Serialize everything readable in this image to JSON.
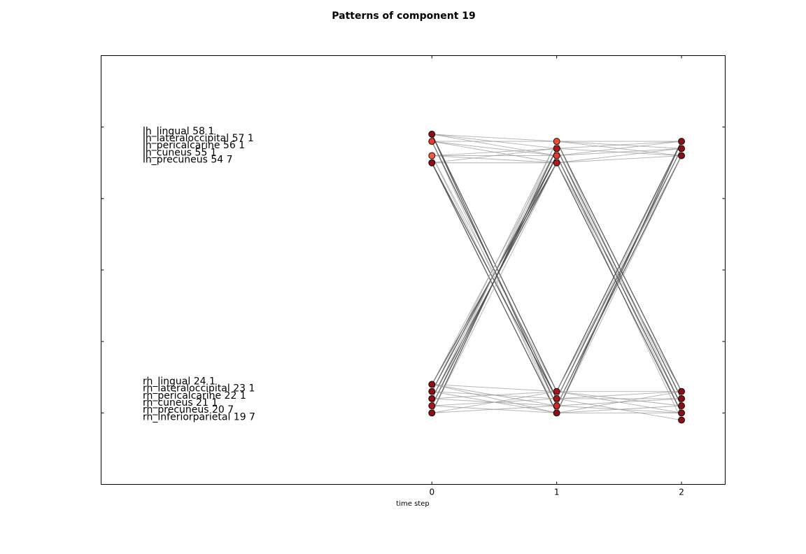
{
  "chart_data": {
    "type": "line",
    "title": "Patterns of component 19",
    "xlabel": "time step",
    "ylabel": "",
    "x_ticks": [
      "0",
      "1",
      "2"
    ],
    "xlim": [
      -2.65,
      2.35
    ],
    "ylim": [
      -1.0,
      5.0
    ],
    "y_ticks": [
      0,
      1,
      2,
      3,
      4
    ],
    "grid": false,
    "labels": [
      {
        "text": "lh_lingual 58 1",
        "y": 3.95
      },
      {
        "text": "lh_lateraloccipital 57 1",
        "y": 3.85
      },
      {
        "text": "lh_pericalcarine 56 1",
        "y": 3.75
      },
      {
        "text": "lh_cuneus 55 1",
        "y": 3.65
      },
      {
        "text": "lh_precuneus 54 7",
        "y": 3.55
      },
      {
        "text": "rh_lingual 24 1",
        "y": 0.45
      },
      {
        "text": "rh_lateraloccipital 23 1",
        "y": 0.35
      },
      {
        "text": "rh_pericalcarine 22 1",
        "y": 0.25
      },
      {
        "text": "rh_cuneus 21 1",
        "y": 0.15
      },
      {
        "text": "rh_precuneus 20 7",
        "y": 0.05
      },
      {
        "text": "rh_inferiorparietal 19 7",
        "y": -0.05
      }
    ],
    "nodes": [
      {
        "x": 0,
        "y": 3.9,
        "color": "#8b0f17"
      },
      {
        "x": 0,
        "y": 3.8,
        "color": "#e8392e"
      },
      {
        "x": 0,
        "y": 3.6,
        "color": "#f25a42"
      },
      {
        "x": 0,
        "y": 3.5,
        "color": "#8b0f17"
      },
      {
        "x": 0,
        "y": 0.4,
        "color": "#8b0f17"
      },
      {
        "x": 0,
        "y": 0.3,
        "color": "#8b0f17"
      },
      {
        "x": 0,
        "y": 0.2,
        "color": "#8b0f17"
      },
      {
        "x": 0,
        "y": 0.1,
        "color": "#a8151d"
      },
      {
        "x": 0,
        "y": 0.0,
        "color": "#8b0f17"
      },
      {
        "x": 1,
        "y": 3.8,
        "color": "#f04a38"
      },
      {
        "x": 1,
        "y": 3.7,
        "color": "#b3161f"
      },
      {
        "x": 1,
        "y": 3.6,
        "color": "#e8392e"
      },
      {
        "x": 1,
        "y": 3.5,
        "color": "#b3161f"
      },
      {
        "x": 1,
        "y": 0.3,
        "color": "#a8151d"
      },
      {
        "x": 1,
        "y": 0.2,
        "color": "#a8151d"
      },
      {
        "x": 1,
        "y": 0.1,
        "color": "#d42a25"
      },
      {
        "x": 1,
        "y": 0.0,
        "color": "#8b0f17"
      },
      {
        "x": 2,
        "y": 3.8,
        "color": "#8b0f17"
      },
      {
        "x": 2,
        "y": 3.7,
        "color": "#8b0f17"
      },
      {
        "x": 2,
        "y": 3.6,
        "color": "#8b0f17"
      },
      {
        "x": 2,
        "y": 0.3,
        "color": "#8b0f17"
      },
      {
        "x": 2,
        "y": 0.2,
        "color": "#8b0f17"
      },
      {
        "x": 2,
        "y": 0.1,
        "color": "#8b0f17"
      },
      {
        "x": 2,
        "y": 0.0,
        "color": "#8b0f17"
      },
      {
        "x": 2,
        "y": -0.1,
        "color": "#8b0f17"
      }
    ],
    "edges": [
      {
        "x0": 0,
        "y0": 3.9,
        "x1": 1,
        "y1": 3.8,
        "strong": false
      },
      {
        "x0": 0,
        "y0": 3.9,
        "x1": 1,
        "y1": 3.7,
        "strong": false
      },
      {
        "x0": 0,
        "y0": 3.9,
        "x1": 1,
        "y1": 3.6,
        "strong": false
      },
      {
        "x0": 0,
        "y0": 3.8,
        "x1": 1,
        "y1": 3.8,
        "strong": false
      },
      {
        "x0": 0,
        "y0": 3.8,
        "x1": 1,
        "y1": 3.6,
        "strong": false
      },
      {
        "x0": 0,
        "y0": 3.8,
        "x1": 1,
        "y1": 3.5,
        "strong": false
      },
      {
        "x0": 0,
        "y0": 3.6,
        "x1": 1,
        "y1": 3.7,
        "strong": false
      },
      {
        "x0": 0,
        "y0": 3.6,
        "x1": 1,
        "y1": 3.6,
        "strong": false
      },
      {
        "x0": 0,
        "y0": 3.6,
        "x1": 1,
        "y1": 3.5,
        "strong": false
      },
      {
        "x0": 0,
        "y0": 3.5,
        "x1": 1,
        "y1": 3.7,
        "strong": false
      },
      {
        "x0": 0,
        "y0": 3.5,
        "x1": 1,
        "y1": 3.5,
        "strong": false
      },
      {
        "x0": 0,
        "y0": 3.9,
        "x1": 1,
        "y1": 0.3,
        "strong": true
      },
      {
        "x0": 0,
        "y0": 3.9,
        "x1": 1,
        "y1": 0.1,
        "strong": true
      },
      {
        "x0": 0,
        "y0": 3.8,
        "x1": 1,
        "y1": 0.2,
        "strong": true
      },
      {
        "x0": 0,
        "y0": 3.8,
        "x1": 1,
        "y1": 0.0,
        "strong": false
      },
      {
        "x0": 0,
        "y0": 3.6,
        "x1": 1,
        "y1": 0.3,
        "strong": false
      },
      {
        "x0": 0,
        "y0": 3.6,
        "x1": 1,
        "y1": 0.1,
        "strong": false
      },
      {
        "x0": 0,
        "y0": 3.5,
        "x1": 1,
        "y1": 0.2,
        "strong": true
      },
      {
        "x0": 0,
        "y0": 3.5,
        "x1": 1,
        "y1": 0.0,
        "strong": true
      },
      {
        "x0": 0,
        "y0": 0.4,
        "x1": 1,
        "y1": 3.5,
        "strong": true
      },
      {
        "x0": 0,
        "y0": 0.4,
        "x1": 1,
        "y1": 3.7,
        "strong": false
      },
      {
        "x0": 0,
        "y0": 0.3,
        "x1": 1,
        "y1": 3.6,
        "strong": true
      },
      {
        "x0": 0,
        "y0": 0.3,
        "x1": 1,
        "y1": 3.8,
        "strong": false
      },
      {
        "x0": 0,
        "y0": 0.2,
        "x1": 1,
        "y1": 3.5,
        "strong": true
      },
      {
        "x0": 0,
        "y0": 0.2,
        "x1": 1,
        "y1": 3.7,
        "strong": false
      },
      {
        "x0": 0,
        "y0": 0.1,
        "x1": 1,
        "y1": 3.6,
        "strong": true
      },
      {
        "x0": 0,
        "y0": 0.1,
        "x1": 1,
        "y1": 3.8,
        "strong": false
      },
      {
        "x0": 0,
        "y0": 0.0,
        "x1": 1,
        "y1": 3.7,
        "strong": true
      },
      {
        "x0": 0,
        "y0": 0.0,
        "x1": 1,
        "y1": 3.5,
        "strong": false
      },
      {
        "x0": 0,
        "y0": 0.4,
        "x1": 1,
        "y1": 0.3,
        "strong": false
      },
      {
        "x0": 0,
        "y0": 0.4,
        "x1": 1,
        "y1": 0.1,
        "strong": false
      },
      {
        "x0": 0,
        "y0": 0.4,
        "x1": 1,
        "y1": 0.0,
        "strong": false
      },
      {
        "x0": 0,
        "y0": 0.3,
        "x1": 1,
        "y1": 0.2,
        "strong": false
      },
      {
        "x0": 0,
        "y0": 0.3,
        "x1": 1,
        "y1": 0.0,
        "strong": false
      },
      {
        "x0": 0,
        "y0": 0.2,
        "x1": 1,
        "y1": 0.3,
        "strong": false
      },
      {
        "x0": 0,
        "y0": 0.2,
        "x1": 1,
        "y1": 0.1,
        "strong": false
      },
      {
        "x0": 0,
        "y0": 0.1,
        "x1": 1,
        "y1": 0.2,
        "strong": false
      },
      {
        "x0": 0,
        "y0": 0.1,
        "x1": 1,
        "y1": 0.0,
        "strong": false
      },
      {
        "x0": 0,
        "y0": 0.0,
        "x1": 1,
        "y1": 0.3,
        "strong": false
      },
      {
        "x0": 0,
        "y0": 0.0,
        "x1": 1,
        "y1": 0.1,
        "strong": false
      },
      {
        "x0": 1,
        "y0": 3.8,
        "x1": 2,
        "y1": 3.8,
        "strong": false
      },
      {
        "x0": 1,
        "y0": 3.8,
        "x1": 2,
        "y1": 3.7,
        "strong": false
      },
      {
        "x0": 1,
        "y0": 3.8,
        "x1": 2,
        "y1": 3.6,
        "strong": false
      },
      {
        "x0": 1,
        "y0": 3.7,
        "x1": 2,
        "y1": 3.8,
        "strong": false
      },
      {
        "x0": 1,
        "y0": 3.7,
        "x1": 2,
        "y1": 3.6,
        "strong": false
      },
      {
        "x0": 1,
        "y0": 3.6,
        "x1": 2,
        "y1": 3.7,
        "strong": false
      },
      {
        "x0": 1,
        "y0": 3.6,
        "x1": 2,
        "y1": 3.8,
        "strong": false
      },
      {
        "x0": 1,
        "y0": 3.5,
        "x1": 2,
        "y1": 3.6,
        "strong": false
      },
      {
        "x0": 1,
        "y0": 3.5,
        "x1": 2,
        "y1": 3.7,
        "strong": false
      },
      {
        "x0": 1,
        "y0": 3.8,
        "x1": 2,
        "y1": 0.3,
        "strong": true
      },
      {
        "x0": 1,
        "y0": 3.8,
        "x1": 2,
        "y1": 0.1,
        "strong": false
      },
      {
        "x0": 1,
        "y0": 3.7,
        "x1": 2,
        "y1": 0.2,
        "strong": true
      },
      {
        "x0": 1,
        "y0": 3.7,
        "x1": 2,
        "y1": 0.0,
        "strong": false
      },
      {
        "x0": 1,
        "y0": 3.6,
        "x1": 2,
        "y1": 0.1,
        "strong": true
      },
      {
        "x0": 1,
        "y0": 3.6,
        "x1": 2,
        "y1": -0.1,
        "strong": false
      },
      {
        "x0": 1,
        "y0": 3.5,
        "x1": 2,
        "y1": 0.0,
        "strong": true
      },
      {
        "x0": 1,
        "y0": 3.5,
        "x1": 2,
        "y1": 0.3,
        "strong": false
      },
      {
        "x0": 1,
        "y0": 0.3,
        "x1": 2,
        "y1": 3.8,
        "strong": true
      },
      {
        "x0": 1,
        "y0": 0.3,
        "x1": 2,
        "y1": 3.6,
        "strong": false
      },
      {
        "x0": 1,
        "y0": 0.2,
        "x1": 2,
        "y1": 3.7,
        "strong": true
      },
      {
        "x0": 1,
        "y0": 0.2,
        "x1": 2,
        "y1": 3.8,
        "strong": false
      },
      {
        "x0": 1,
        "y0": 0.1,
        "x1": 2,
        "y1": 3.6,
        "strong": true
      },
      {
        "x0": 1,
        "y0": 0.1,
        "x1": 2,
        "y1": 3.7,
        "strong": false
      },
      {
        "x0": 1,
        "y0": 0.0,
        "x1": 2,
        "y1": 3.8,
        "strong": true
      },
      {
        "x0": 1,
        "y0": 0.0,
        "x1": 2,
        "y1": 3.6,
        "strong": false
      },
      {
        "x0": 1,
        "y0": 0.3,
        "x1": 2,
        "y1": 0.3,
        "strong": false
      },
      {
        "x0": 1,
        "y0": 0.3,
        "x1": 2,
        "y1": 0.1,
        "strong": false
      },
      {
        "x0": 1,
        "y0": 0.3,
        "x1": 2,
        "y1": 0.0,
        "strong": false
      },
      {
        "x0": 1,
        "y0": 0.2,
        "x1": 2,
        "y1": 0.3,
        "strong": false
      },
      {
        "x0": 1,
        "y0": 0.2,
        "x1": 2,
        "y1": 0.2,
        "strong": false
      },
      {
        "x0": 1,
        "y0": 0.2,
        "x1": 2,
        "y1": -0.1,
        "strong": false
      },
      {
        "x0": 1,
        "y0": 0.1,
        "x1": 2,
        "y1": 0.2,
        "strong": false
      },
      {
        "x0": 1,
        "y0": 0.1,
        "x1": 2,
        "y1": 0.0,
        "strong": false
      },
      {
        "x0": 1,
        "y0": 0.0,
        "x1": 2,
        "y1": 0.1,
        "strong": false
      },
      {
        "x0": 1,
        "y0": 0.0,
        "x1": 2,
        "y1": 0.0,
        "strong": false
      },
      {
        "x0": 1,
        "y0": 0.0,
        "x1": 2,
        "y1": 0.3,
        "strong": false
      }
    ],
    "colors": {
      "edge_light": "#9a9a9a",
      "edge_strong": "#4a4a4a",
      "node_stroke": "#000000",
      "frame": "#000000"
    }
  }
}
